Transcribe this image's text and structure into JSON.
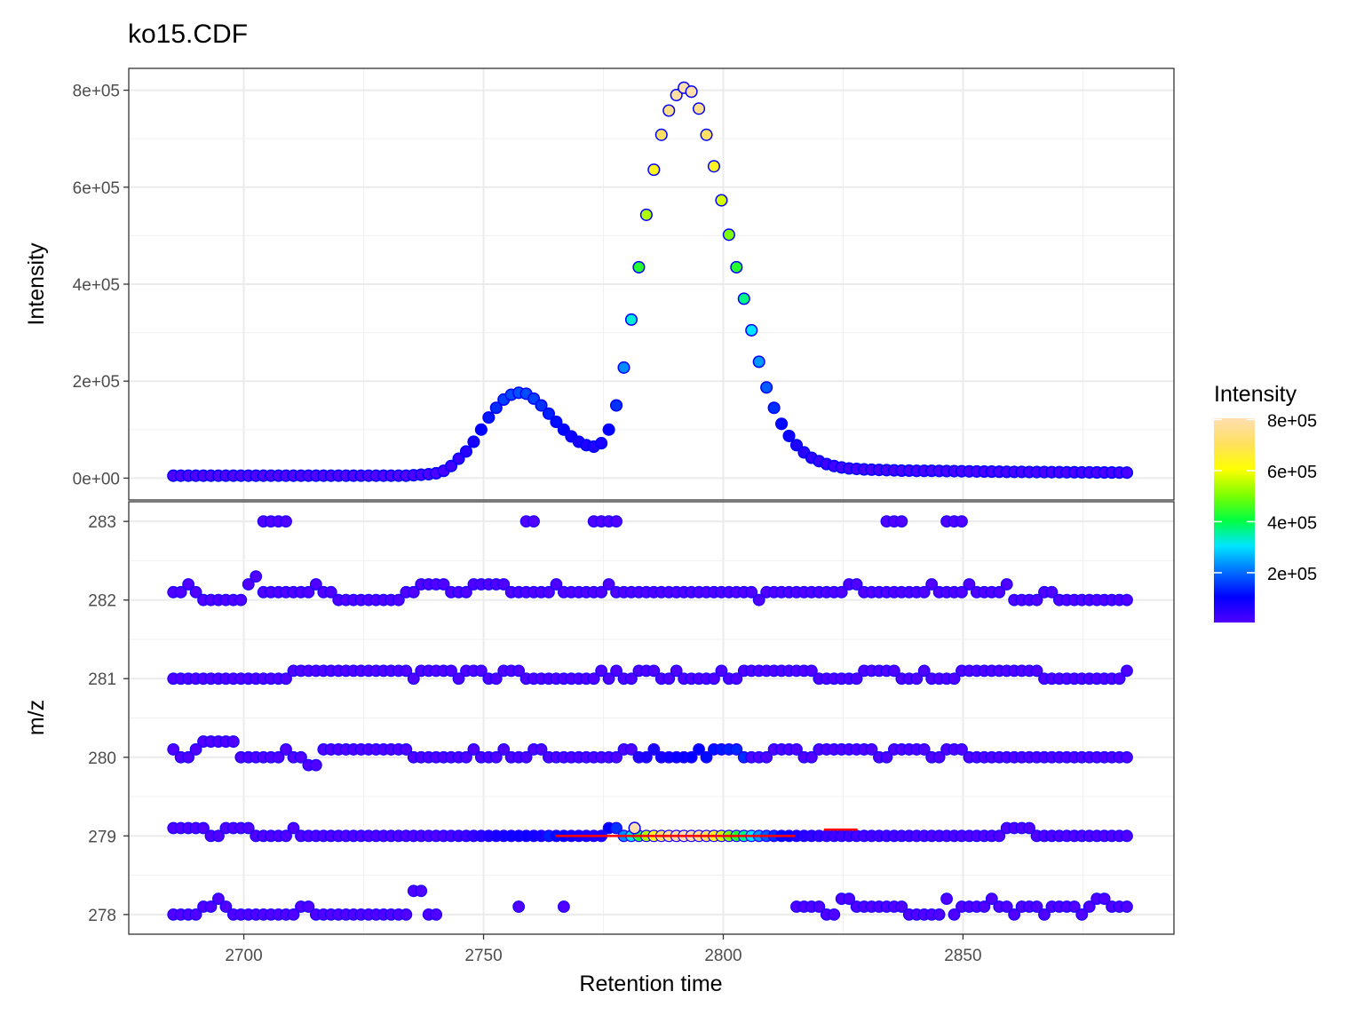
{
  "title": "ko15.CDF",
  "chart_data": [
    {
      "type": "scatter",
      "panel": "top",
      "title": "ko15.CDF",
      "xlabel": "",
      "ylabel": "Intensity",
      "xlim": [
        2676,
        2894
      ],
      "ylim": [
        -45000,
        845000
      ],
      "yticks": [
        "0e+00",
        "2e+05",
        "4e+05",
        "6e+05",
        "8e+05"
      ],
      "ytick_values": [
        0,
        200000,
        400000,
        600000,
        800000
      ],
      "grid": true,
      "x_start": 2685.3,
      "x_step": 1.566,
      "n_points": 128,
      "intensity": [
        5000,
        5000,
        5000,
        5000,
        5000,
        5000,
        5000,
        5000,
        5000,
        5000,
        5000,
        5000,
        5000,
        5000,
        5000,
        5000,
        5000,
        5000,
        5000,
        5000,
        5000,
        5000,
        5000,
        5000,
        5000,
        5000,
        5000,
        5000,
        5000,
        5000,
        5000,
        5000,
        6000,
        7000,
        8000,
        10000,
        15000,
        25000,
        40000,
        55000,
        75000,
        100000,
        125000,
        145000,
        162000,
        172000,
        176000,
        174000,
        164000,
        150000,
        133000,
        116000,
        100000,
        86000,
        75000,
        68000,
        65000,
        72000,
        100000,
        150000,
        228000,
        327000,
        435000,
        543000,
        636000,
        708000,
        758000,
        790000,
        805000,
        797000,
        762000,
        708000,
        643000,
        573000,
        502000,
        435000,
        370000,
        305000,
        240000,
        187000,
        145000,
        112000,
        87000,
        68000,
        53000,
        42000,
        35000,
        29000,
        25000,
        22000,
        20000,
        19000,
        18000,
        17500,
        17000,
        16500,
        16000,
        15500,
        15500,
        15000,
        15000,
        15000,
        14800,
        14600,
        14400,
        14200,
        14000,
        13800,
        13600,
        13400,
        13200,
        13000,
        12900,
        12800,
        12700,
        12600,
        12500,
        12400,
        12300,
        12200,
        12100,
        12000,
        11900,
        11800,
        11700,
        11600,
        11500,
        11400
      ]
    },
    {
      "type": "scatter",
      "panel": "bottom",
      "xlabel": "Retention time",
      "ylabel": "m/z",
      "xlim": [
        2676,
        2894
      ],
      "ylim": [
        277.75,
        283.25
      ],
      "xticks": [
        "2700",
        "2750",
        "2800",
        "2850"
      ],
      "xtick_values": [
        2700,
        2750,
        2800,
        2850
      ],
      "yticks": [
        "278",
        "279",
        "280",
        "281",
        "282",
        "283"
      ],
      "ytick_values": [
        278,
        279,
        280,
        281,
        282,
        283
      ],
      "grid": true,
      "rows": [
        {
          "base": 283,
          "present": "0000000000001111000000000000000000000000000000011000000011110000000000000000000000000000000000011100000111000000000000000000000",
          "offsets": ""
        },
        {
          "base": 282,
          "offsets": "1121000000231111111211000000000112222111222221111112111111211111111111111111110111111111112211111111121111211112000011000000000000000000000000000000000000000000000000"
        },
        {
          "base": 281,
          "offsets": "0000000000000000111111111111111101111101110011100000000001010011100100000100111111111100000011111000100001111111111100000000000122000000"
        },
        {
          "base": 280,
          "offsets": "1001222220000001009911111111111100000000100010001100000000001100100000101111000011110011111111001111100111000"
        },
        {
          "base": 279,
          "offsets": "1111100111100000100000000000000000000000000000000000000000110000000000000000000000000000000000000000000000000001111000000000000000"
        },
        {
          "base": 278,
          "offsets": "00001121000000000110000000000000330000001120"
        }
      ],
      "highlight_lines": [
        {
          "mz": 279.0,
          "x_from": 2765,
          "x_to": 2815,
          "color": "#ff0000"
        },
        {
          "mz": 279.08,
          "x_from": 2821,
          "x_to": 2828,
          "color": "#ff0000"
        }
      ]
    }
  ],
  "legend": {
    "title": "Intensity",
    "labels": [
      "8e+05",
      "6e+05",
      "4e+05",
      "2e+05"
    ],
    "values": [
      800000,
      600000,
      400000,
      200000
    ],
    "colors": [
      "#5000ff",
      "#0000ff",
      "#0070ff",
      "#00e5ff",
      "#00ff40",
      "#80ff00",
      "#ffff00",
      "#ffe060",
      "#ffdeb0"
    ],
    "min": 5000,
    "max": 805000
  },
  "axes": {
    "top_ylabel": "Intensity",
    "bottom_ylabel": "m/z",
    "xlabel": "Retention time"
  }
}
